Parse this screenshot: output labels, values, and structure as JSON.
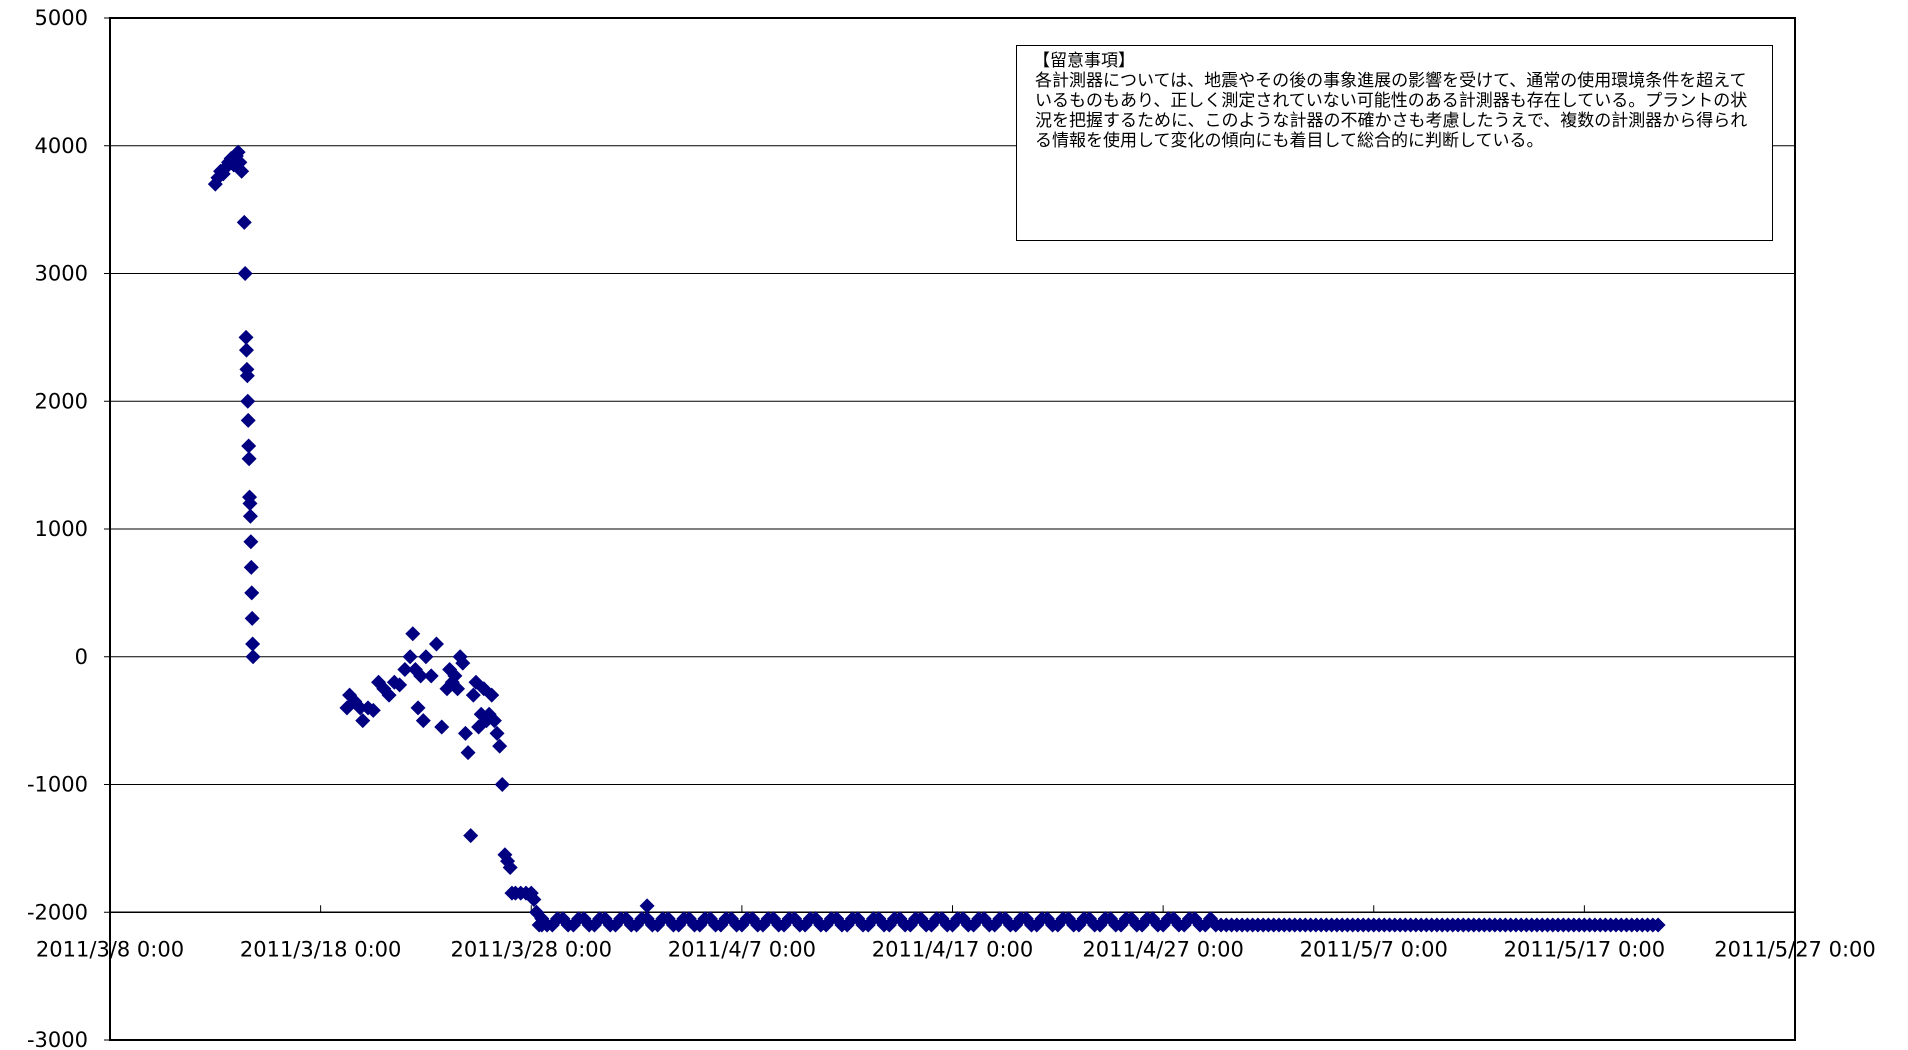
{
  "note": {
    "title": "【留意事項】",
    "body": "各計測器については、地震やその後の事象進展の影響を受けて、通常の使用環境条件を超えているものもあり、正しく測定されていない可能性のある計測器も存在している。プラントの状況を把握するために、このような計器の不確かさも考慮したうえで、複数の計測器から得られる情報を使用して変化の傾向にも着目して総合的に判断している。"
  },
  "chart_data": {
    "type": "scatter",
    "title": "",
    "xlabel": "",
    "ylabel": "",
    "ylim": [
      -3000,
      5000
    ],
    "y_ticks": [
      "5000",
      "4000",
      "3000",
      "2000",
      "1000",
      "0",
      "-1000",
      "-2000",
      "-3000"
    ],
    "x_range": [
      "2011/3/8 0:00",
      "2011/5/27 0:00"
    ],
    "x_ticks": [
      "2011/3/8 0:00",
      "2011/3/18 0:00",
      "2011/3/28 0:00",
      "2011/4/7 0:00",
      "2011/4/17 0:00",
      "2011/4/27 0:00",
      "2011/5/7 0:00",
      "2011/5/17 0:00",
      "2011/5/27 0:00"
    ],
    "x_axis_crosses_at": -2000,
    "grid": "horizontal",
    "marker": "diamond",
    "marker_color": "#000080",
    "series": [
      {
        "points": [
          [
            "2011/3/13 0:00",
            3700
          ],
          [
            "2011/3/13 3:00",
            3750
          ],
          [
            "2011/3/13 6:00",
            3800
          ],
          [
            "2011/3/13 9:00",
            3780
          ],
          [
            "2011/3/13 12:00",
            3830
          ],
          [
            "2011/3/13 15:00",
            3870
          ],
          [
            "2011/3/13 18:00",
            3900
          ],
          [
            "2011/3/13 21:00",
            3850
          ],
          [
            "2011/3/14 0:00",
            3920
          ],
          [
            "2011/3/14 2:00",
            3950
          ],
          [
            "2011/3/14 4:00",
            3870
          ],
          [
            "2011/3/14 6:00",
            3800
          ],
          [
            "2011/3/14 9:00",
            3400
          ],
          [
            "2011/3/14 10:00",
            3000
          ],
          [
            "2011/3/14 11:00",
            2500
          ],
          [
            "2011/3/14 11:30",
            2400
          ],
          [
            "2011/3/14 12:00",
            2250
          ],
          [
            "2011/3/14 12:30",
            2200
          ],
          [
            "2011/3/14 13:00",
            2000
          ],
          [
            "2011/3/14 13:30",
            1850
          ],
          [
            "2011/3/14 14:00",
            1650
          ],
          [
            "2011/3/14 14:30",
            1550
          ],
          [
            "2011/3/14 15:00",
            1250
          ],
          [
            "2011/3/14 15:30",
            1200
          ],
          [
            "2011/3/14 16:00",
            1100
          ],
          [
            "2011/3/14 16:30",
            900
          ],
          [
            "2011/3/14 17:00",
            700
          ],
          [
            "2011/3/14 17:30",
            500
          ],
          [
            "2011/3/14 18:00",
            300
          ],
          [
            "2011/3/14 18:30",
            100
          ],
          [
            "2011/3/14 19:00",
            0
          ],
          [
            "2011/3/19 6:00",
            -400
          ],
          [
            "2011/3/19 9:00",
            -300
          ],
          [
            "2011/3/19 15:00",
            -350
          ],
          [
            "2011/3/19 21:00",
            -400
          ],
          [
            "2011/3/20 0:00",
            -500
          ],
          [
            "2011/3/20 6:00",
            -400
          ],
          [
            "2011/3/20 12:00",
            -420
          ],
          [
            "2011/3/20 18:00",
            -200
          ],
          [
            "2011/3/21 0:00",
            -250
          ],
          [
            "2011/3/21 6:00",
            -300
          ],
          [
            "2011/3/21 12:00",
            -200
          ],
          [
            "2011/3/21 18:00",
            -220
          ],
          [
            "2011/3/22 0:00",
            -100
          ],
          [
            "2011/3/22 6:00",
            0
          ],
          [
            "2011/3/22 9:00",
            180
          ],
          [
            "2011/3/22 12:00",
            -100
          ],
          [
            "2011/3/22 15:00",
            -400
          ],
          [
            "2011/3/22 18:00",
            -150
          ],
          [
            "2011/3/22 21:00",
            -500
          ],
          [
            "2011/3/23 0:00",
            0
          ],
          [
            "2011/3/23 6:00",
            -150
          ],
          [
            "2011/3/23 12:00",
            100
          ],
          [
            "2011/3/23 18:00",
            -550
          ],
          [
            "2011/3/24 0:00",
            -250
          ],
          [
            "2011/3/24 3:00",
            -100
          ],
          [
            "2011/3/24 6:00",
            -200
          ],
          [
            "2011/3/24 9:00",
            -150
          ],
          [
            "2011/3/24 12:00",
            -250
          ],
          [
            "2011/3/24 15:00",
            0
          ],
          [
            "2011/3/24 18:00",
            -50
          ],
          [
            "2011/3/24 21:00",
            -600
          ],
          [
            "2011/3/25 0:00",
            -750
          ],
          [
            "2011/3/25 3:00",
            -1400
          ],
          [
            "2011/3/25 6:00",
            -300
          ],
          [
            "2011/3/25 9:00",
            -200
          ],
          [
            "2011/3/25 12:00",
            -550
          ],
          [
            "2011/3/25 15:00",
            -450
          ],
          [
            "2011/3/25 18:00",
            -250
          ],
          [
            "2011/3/25 21:00",
            -500
          ],
          [
            "2011/3/26 0:00",
            -450
          ],
          [
            "2011/3/26 3:00",
            -300
          ],
          [
            "2011/3/26 6:00",
            -500
          ],
          [
            "2011/3/26 9:00",
            -600
          ],
          [
            "2011/3/26 12:00",
            -700
          ],
          [
            "2011/3/26 15:00",
            -1000
          ],
          [
            "2011/3/26 18:00",
            -1550
          ],
          [
            "2011/3/26 21:00",
            -1600
          ],
          [
            "2011/3/27 0:00",
            -1650
          ],
          [
            "2011/3/27 2:00",
            -1850
          ],
          [
            "2011/3/27 6:00",
            -1850
          ],
          [
            "2011/3/27 12:00",
            -1850
          ],
          [
            "2011/3/27 18:00",
            -1850
          ],
          [
            "2011/3/28 0:00",
            -1850
          ],
          [
            "2011/3/28 3:00",
            -1900
          ],
          [
            "2011/3/28 6:00",
            -2000
          ],
          [
            "2011/3/28 9:00",
            -2100
          ],
          [
            "2011/3/28 12:00",
            -2100
          ],
          [
            "2011/4/2 12:00",
            -1950
          ]
        ]
      }
    ],
    "plateau": {
      "from": "2011/3/28 12:00",
      "to": "2011/5/20 12:00",
      "step_hours": 6,
      "level": -2100,
      "variation": [
        -2050,
        -2100,
        -2100,
        -2050,
        -2100
      ]
    }
  }
}
